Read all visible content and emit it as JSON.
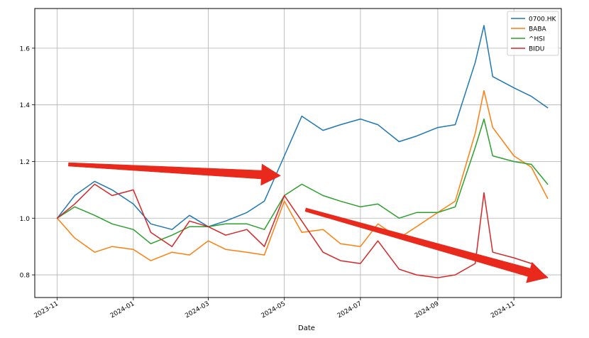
{
  "chart_data": {
    "type": "line",
    "title": "",
    "xlabel": "Date",
    "ylabel": "",
    "grid": true,
    "legend_position": "top-right",
    "xlim": [
      "2023-10-14",
      "2024-12-09"
    ],
    "ylim": [
      0.72,
      1.74
    ],
    "x_ticks": [
      "2023-11",
      "2024-01",
      "2024-03",
      "2024-05",
      "2024-07",
      "2024-09",
      "2024-11"
    ],
    "x_tick_dates": [
      "2023-11-01",
      "2024-01-01",
      "2024-03-01",
      "2024-05-01",
      "2024-07-01",
      "2024-09-01",
      "2024-11-01"
    ],
    "y_ticks": [
      0.8,
      1.0,
      1.2,
      1.4,
      1.6
    ],
    "y_tick_labels": [
      "0.8",
      "1.0",
      "1.2",
      "1.4",
      "1.6"
    ],
    "x": [
      "2023-11-01",
      "2023-11-15",
      "2023-12-01",
      "2023-12-15",
      "2024-01-01",
      "2024-01-15",
      "2024-02-01",
      "2024-02-15",
      "2024-03-01",
      "2024-03-15",
      "2024-04-01",
      "2024-04-15",
      "2024-05-01",
      "2024-05-15",
      "2024-06-01",
      "2024-06-15",
      "2024-07-01",
      "2024-07-15",
      "2024-08-01",
      "2024-08-15",
      "2024-09-01",
      "2024-09-15",
      "2024-10-01",
      "2024-10-08",
      "2024-10-15",
      "2024-11-01",
      "2024-11-15",
      "2024-11-28"
    ],
    "series": [
      {
        "name": "0700.HK",
        "color": "#1f77b4",
        "values": [
          1.0,
          1.08,
          1.13,
          1.1,
          1.05,
          0.98,
          0.96,
          1.01,
          0.97,
          0.99,
          1.02,
          1.06,
          1.22,
          1.36,
          1.31,
          1.33,
          1.35,
          1.33,
          1.27,
          1.29,
          1.32,
          1.33,
          1.55,
          1.68,
          1.5,
          1.46,
          1.43,
          1.39
        ]
      },
      {
        "name": "BABA",
        "color": "#ff7f0e",
        "values": [
          1.0,
          0.93,
          0.88,
          0.9,
          0.89,
          0.85,
          0.88,
          0.87,
          0.92,
          0.89,
          0.88,
          0.87,
          1.06,
          0.95,
          0.96,
          0.91,
          0.9,
          0.98,
          0.93,
          0.97,
          1.02,
          1.06,
          1.3,
          1.45,
          1.32,
          1.22,
          1.18,
          1.07
        ]
      },
      {
        "name": "^HSI",
        "color": "#2ca02c",
        "values": [
          1.0,
          1.04,
          1.01,
          0.98,
          0.96,
          0.91,
          0.94,
          0.97,
          0.97,
          0.98,
          0.98,
          0.96,
          1.08,
          1.12,
          1.08,
          1.06,
          1.04,
          1.05,
          1.0,
          1.02,
          1.02,
          1.04,
          1.25,
          1.35,
          1.22,
          1.2,
          1.19,
          1.12
        ]
      },
      {
        "name": "BIDU",
        "color": "#d62728",
        "values": [
          1.0,
          1.05,
          1.12,
          1.08,
          1.1,
          0.95,
          0.9,
          0.99,
          0.97,
          0.94,
          0.96,
          0.9,
          1.08,
          0.99,
          0.88,
          0.85,
          0.84,
          0.92,
          0.82,
          0.8,
          0.79,
          0.8,
          0.84,
          1.09,
          0.88,
          0.86,
          0.84,
          0.79
        ]
      }
    ],
    "annotations": [
      {
        "type": "arrow",
        "color": "#e8291c",
        "from": [
          "2023-11-10",
          1.19
        ],
        "to": [
          "2024-04-28",
          1.15
        ]
      },
      {
        "type": "arrow",
        "color": "#e8291c",
        "from": [
          "2024-05-18",
          1.03
        ],
        "to": [
          "2024-11-28",
          0.79
        ]
      }
    ]
  }
}
